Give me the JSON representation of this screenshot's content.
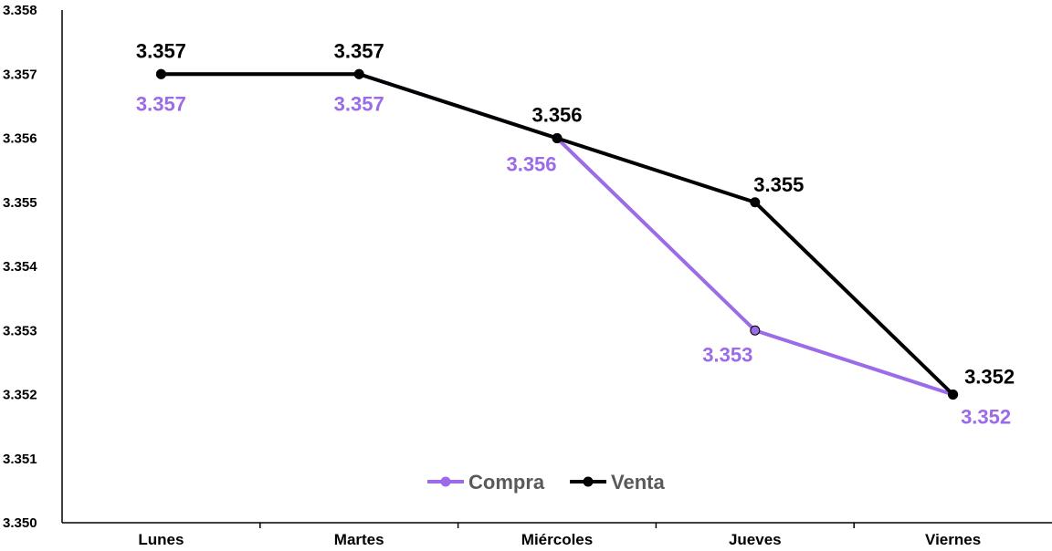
{
  "chart_data": {
    "type": "line",
    "categories": [
      "Lunes",
      "Martes",
      "Miércoles",
      "Jueves",
      "Viernes"
    ],
    "ylim": [
      3.35,
      3.358
    ],
    "yticks": [
      "3.350",
      "3.351",
      "3.352",
      "3.353",
      "3.354",
      "3.355",
      "3.356",
      "3.357",
      "3.358"
    ],
    "grid": false,
    "legend_position": "bottom-center",
    "series": [
      {
        "name": "Compra",
        "color": "#9B6BE8",
        "values": [
          3.357,
          3.357,
          3.356,
          3.353,
          3.352
        ],
        "labels": [
          "3.357",
          "3.357",
          "3.356",
          "3.353",
          "3.352"
        ]
      },
      {
        "name": "Venta",
        "color": "#000000",
        "values": [
          3.357,
          3.357,
          3.356,
          3.355,
          3.352
        ],
        "labels": [
          "3.357",
          "3.357",
          "3.356",
          "3.355",
          "3.352"
        ]
      }
    ]
  }
}
